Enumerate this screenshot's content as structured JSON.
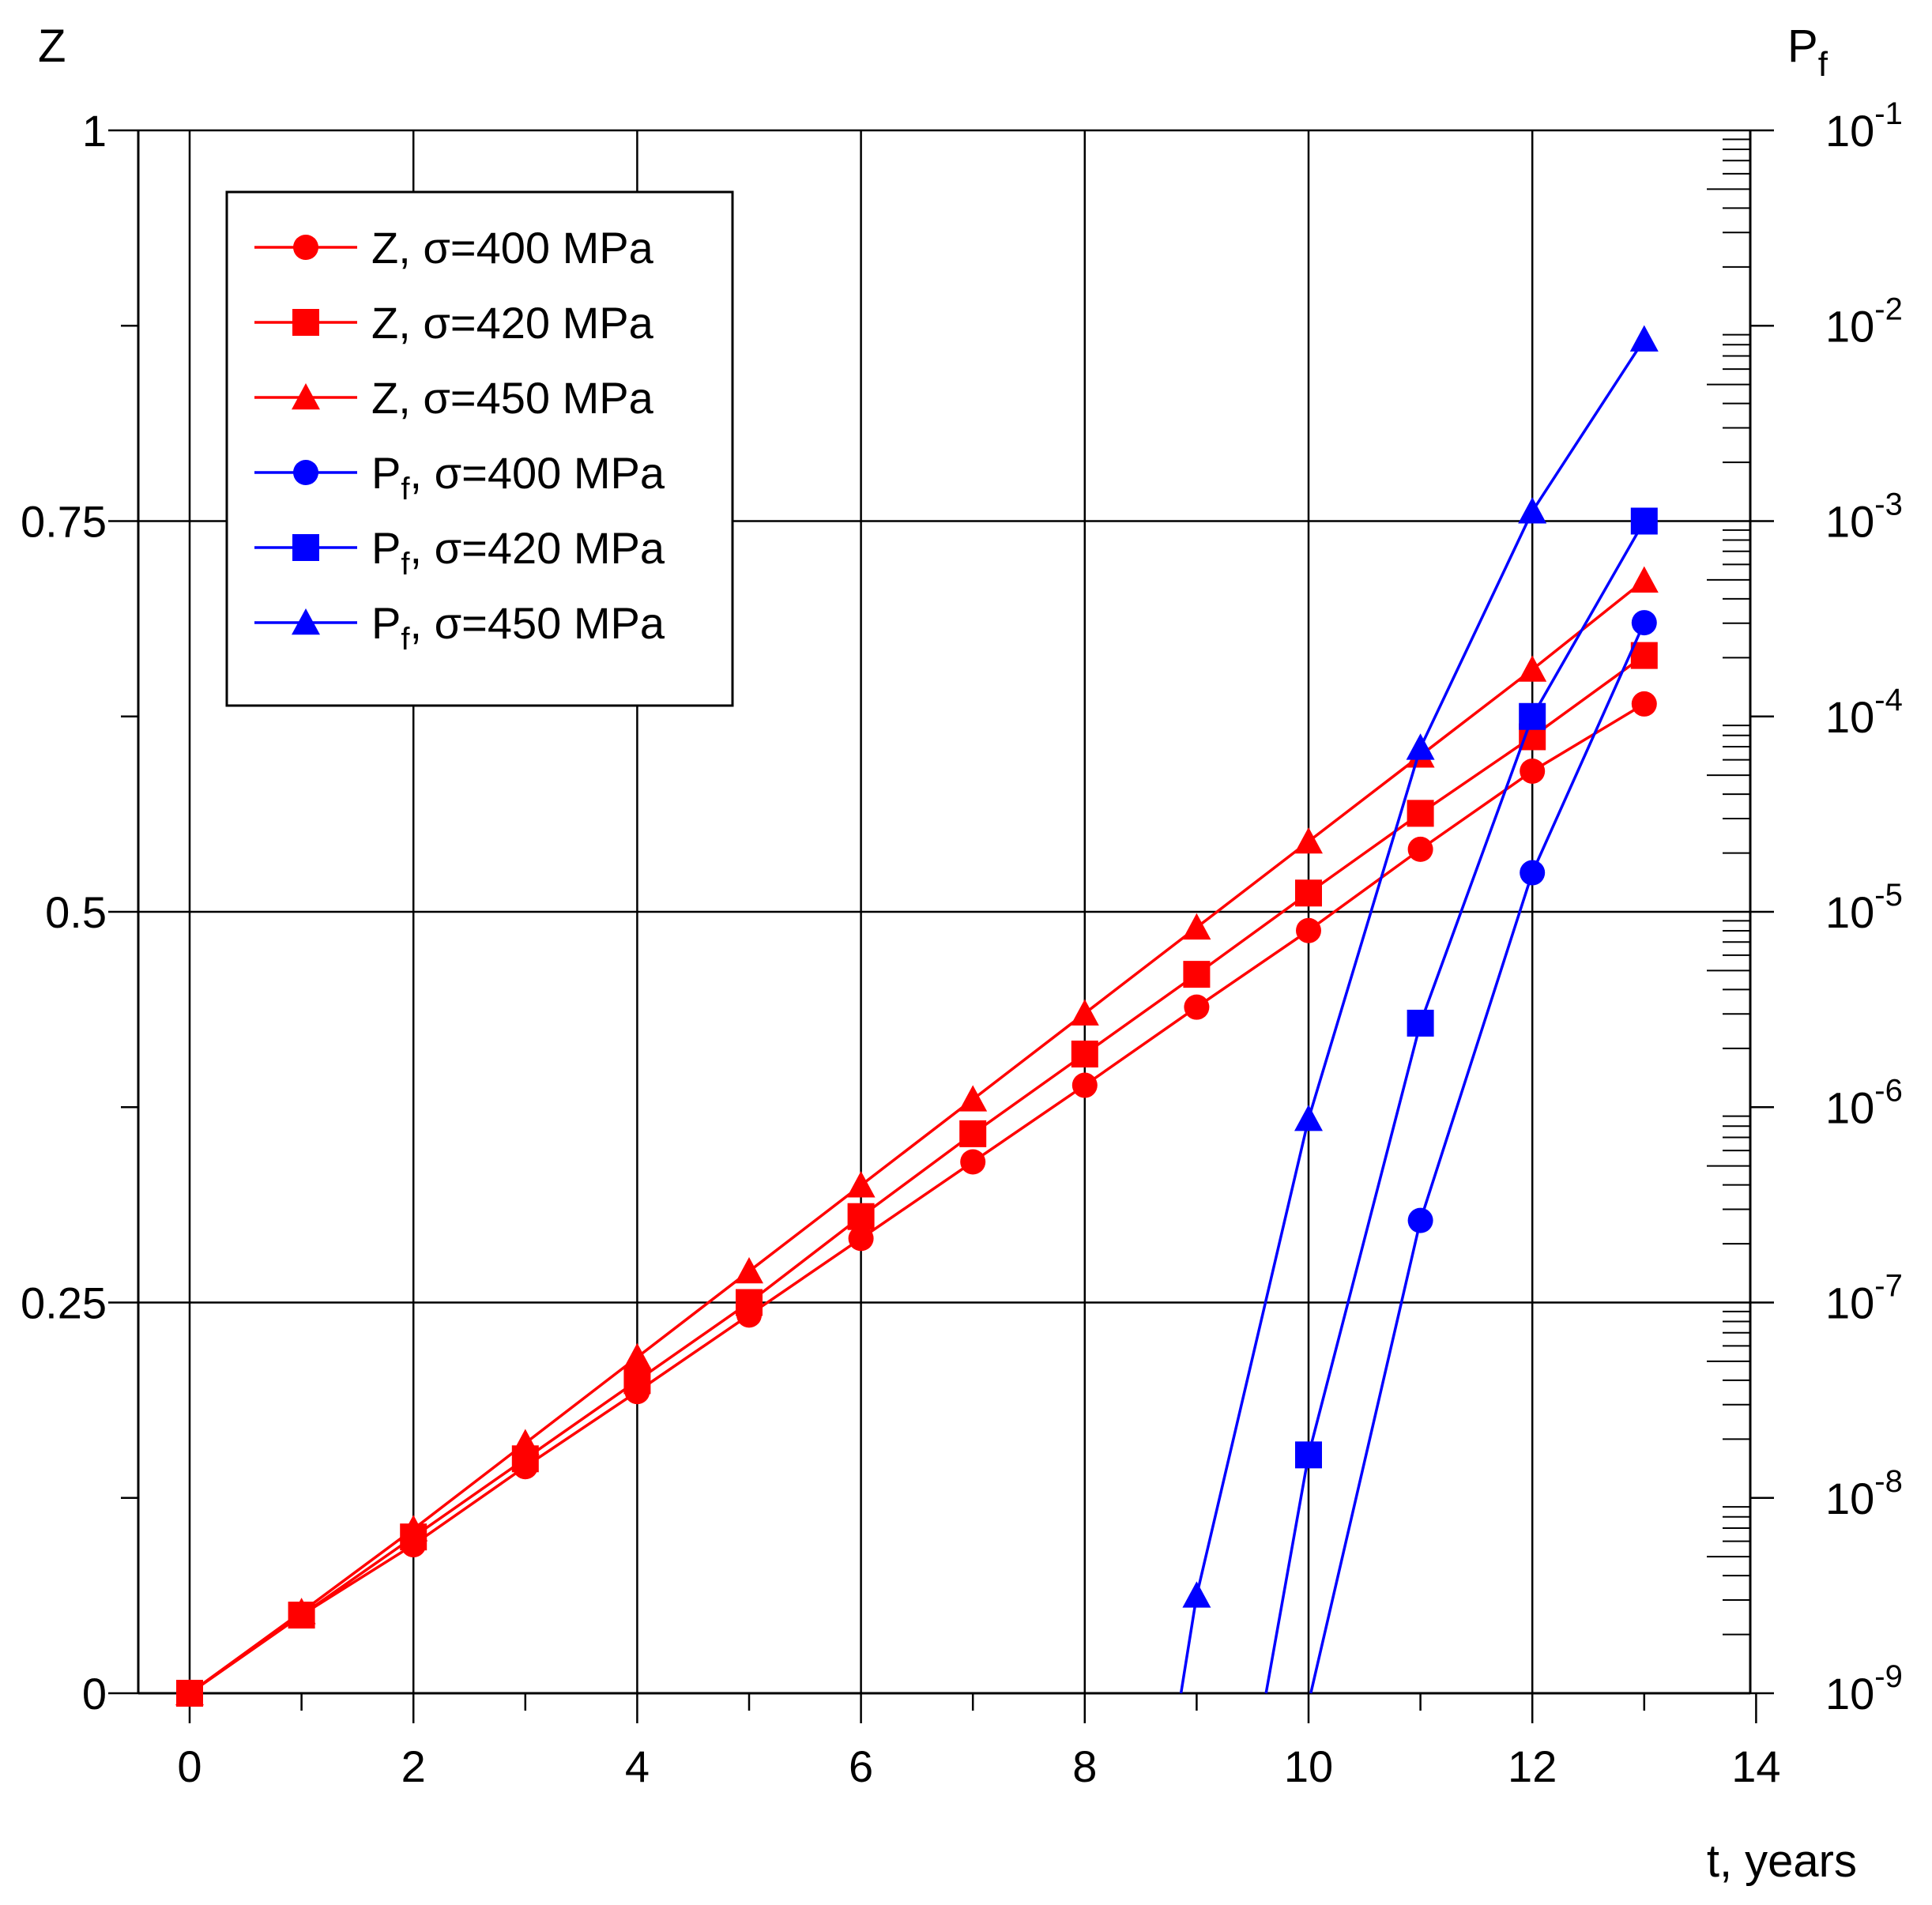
{
  "chart_data": {
    "type": "line",
    "x_axis": {
      "label": "t, years",
      "range": [
        0,
        14
      ],
      "ticks": [
        0,
        2,
        4,
        6,
        8,
        10,
        12,
        14
      ],
      "tick_labels": [
        "0",
        "2",
        "4",
        "6",
        "8",
        "10",
        "12",
        "14"
      ]
    },
    "y_left": {
      "label": "Z",
      "range": [
        0,
        1
      ],
      "ticks": [
        0,
        0.25,
        0.5,
        0.75,
        1
      ],
      "tick_labels": [
        "0",
        "0.25",
        "0.5",
        "0.75",
        "1"
      ]
    },
    "y_right": {
      "label_main": "P",
      "label_sub": "f",
      "scale": "log",
      "range_exp": [
        -9,
        -1
      ],
      "tick_exps": [
        -9,
        -8,
        -7,
        -6,
        -5,
        -4,
        -3,
        -2,
        -1
      ],
      "tick_base": "10",
      "tick_sup": [
        "-9",
        "-8",
        "-7",
        "-6",
        "-5",
        "-4",
        "-3",
        "-2",
        "-1"
      ]
    },
    "grid": true,
    "legend_position": "top-left",
    "series": [
      {
        "name": "Z, σ=400 MPa",
        "axis": "left",
        "color": "#ff0000",
        "marker": "circle",
        "legend_main": "Z, σ=400 MPa",
        "legend_sub": "",
        "legend_rest": "",
        "x": [
          0,
          1,
          2,
          3,
          4,
          5,
          6,
          7,
          8,
          9,
          10,
          11,
          12,
          13
        ],
        "y": [
          0,
          0.05,
          0.095,
          0.145,
          0.193,
          0.242,
          0.291,
          0.34,
          0.389,
          0.439,
          0.488,
          0.54,
          0.59,
          0.633
        ]
      },
      {
        "name": "Z, σ=420 MPa",
        "axis": "left",
        "color": "#ff0000",
        "marker": "square",
        "legend_main": "Z, σ=420 MPa",
        "legend_sub": "",
        "legend_rest": "",
        "x": [
          0,
          1,
          2,
          3,
          4,
          5,
          6,
          7,
          8,
          9,
          10,
          11,
          12,
          13
        ],
        "y": [
          0,
          0.05,
          0.1,
          0.15,
          0.2,
          0.25,
          0.305,
          0.358,
          0.409,
          0.46,
          0.512,
          0.563,
          0.612,
          0.664
        ]
      },
      {
        "name": "Z, σ=450 MPa",
        "axis": "left",
        "color": "#ff0000",
        "marker": "triangle",
        "legend_main": "Z, σ=450 MPa",
        "legend_sub": "",
        "legend_rest": "",
        "x": [
          0,
          1,
          2,
          3,
          4,
          5,
          6,
          7,
          8,
          9,
          10,
          11,
          12,
          13
        ],
        "y": [
          0,
          0.052,
          0.105,
          0.16,
          0.215,
          0.27,
          0.325,
          0.38,
          0.435,
          0.49,
          0.545,
          0.6,
          0.655,
          0.712
        ]
      },
      {
        "name": "Pf, σ=400 MPa",
        "axis": "right",
        "color": "#0000ff",
        "marker": "circle",
        "legend_main": "P",
        "legend_sub": "f",
        "legend_rest": ", σ=400 MPa",
        "x": [
          10.02,
          11,
          12,
          13
        ],
        "log10": [
          -9,
          -6.58,
          -4.8,
          -3.52
        ]
      },
      {
        "name": "Pf, σ=420 MPa",
        "axis": "right",
        "color": "#0000ff",
        "marker": "square",
        "legend_main": "P",
        "legend_sub": "f",
        "legend_rest": ", σ=420 MPa",
        "x": [
          9.62,
          10,
          11,
          12,
          13
        ],
        "log10": [
          -9,
          -7.78,
          -5.57,
          -4.0,
          -3.0
        ]
      },
      {
        "name": "Pf, σ=450 MPa",
        "axis": "right",
        "color": "#0000ff",
        "marker": "triangle",
        "legend_main": "P",
        "legend_sub": "f",
        "legend_rest": ", σ=450 MPa",
        "x": [
          8.86,
          9,
          10,
          11,
          12,
          13
        ],
        "log10": [
          -9,
          -8.5,
          -6.06,
          -4.16,
          -2.95,
          -2.07
        ]
      }
    ]
  }
}
